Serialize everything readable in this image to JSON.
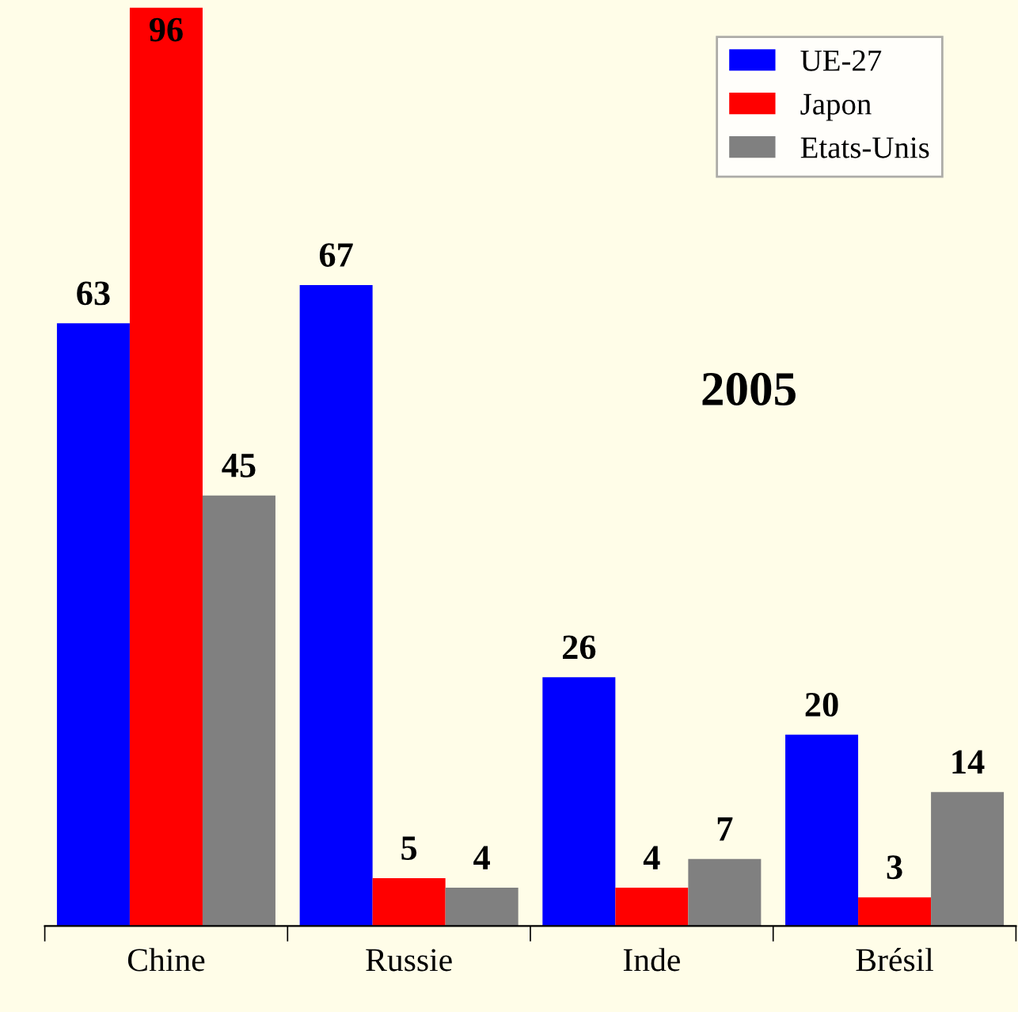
{
  "chart_data": {
    "type": "bar",
    "title": "2005",
    "categories": [
      "Chine",
      "Russie",
      "Inde",
      "Brésil"
    ],
    "series": [
      {
        "name": "UE-27",
        "color": "#0000ff",
        "values": [
          63,
          67,
          26,
          20
        ]
      },
      {
        "name": "Japon",
        "color": "#ff0000",
        "values": [
          96,
          5,
          4,
          3
        ]
      },
      {
        "name": "Etats-Unis",
        "color": "#808080",
        "values": [
          45,
          4,
          7,
          14
        ]
      }
    ],
    "data_labels": true,
    "legend": "top right",
    "grid": false
  }
}
